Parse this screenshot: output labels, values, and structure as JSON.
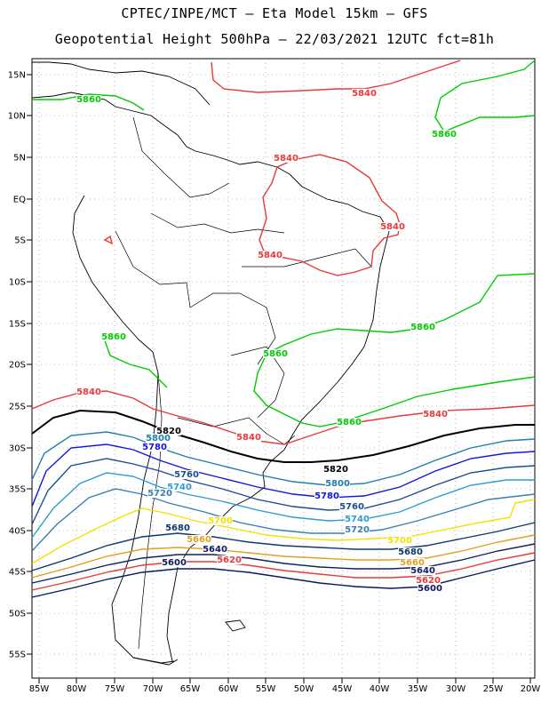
{
  "header": {
    "line1": "CPTEC/INPE/MCT –  Eta Model 15km – GFS",
    "line2": "Geopotential Height 500hPa – 22/03/2021 12UTC fct=81h"
  },
  "map": {
    "lat_labels": [
      "15N",
      "10N",
      "5N",
      "EQ",
      "5S",
      "10S",
      "15S",
      "20S",
      "25S",
      "30S",
      "35S",
      "40S",
      "45S",
      "50S",
      "55S"
    ],
    "lon_labels": [
      "85W",
      "80W",
      "75W",
      "70W",
      "65W",
      "60W",
      "55W",
      "50W",
      "45W",
      "40W",
      "35W",
      "30W",
      "25W",
      "20W"
    ]
  },
  "legend_colors": {
    "5860": "#00cc00",
    "5840": "#e83a3a",
    "5820": "#000000",
    "5800": "#1f7fa8",
    "5780": "#1414e0",
    "5760": "#1a4f8c",
    "5740": "#2e9ccf",
    "5720": "#3b7fb0",
    "5700": "#f2e200",
    "5680": "#0a3a6e",
    "5660": "#e0a020",
    "5640": "#102060",
    "5620": "#e83a3a",
    "5600": "#0a1a5a"
  },
  "contour_labels": [
    {
      "text": "5860",
      "color": "#00cc00"
    },
    {
      "text": "5860",
      "color": "#00cc00"
    },
    {
      "text": "5860",
      "color": "#00cc00"
    },
    {
      "text": "5860",
      "color": "#00cc00"
    },
    {
      "text": "5860",
      "color": "#00cc00"
    },
    {
      "text": "5860",
      "color": "#00cc00"
    },
    {
      "text": "5840",
      "color": "#e83a3a"
    },
    {
      "text": "5840",
      "color": "#e83a3a"
    },
    {
      "text": "5840",
      "color": "#e83a3a"
    },
    {
      "text": "5840",
      "color": "#e83a3a"
    },
    {
      "text": "5840",
      "color": "#e83a3a"
    },
    {
      "text": "5840",
      "color": "#e83a3a"
    },
    {
      "text": "5840",
      "color": "#e83a3a"
    },
    {
      "text": "5820",
      "color": "#000000"
    },
    {
      "text": "5820",
      "color": "#000000"
    },
    {
      "text": "5800",
      "color": "#1f7fa8"
    },
    {
      "text": "5800",
      "color": "#1f7fa8"
    },
    {
      "text": "5780",
      "color": "#1414e0"
    },
    {
      "text": "5780",
      "color": "#1414e0"
    },
    {
      "text": "5760",
      "color": "#1a4f8c"
    },
    {
      "text": "5760",
      "color": "#1a4f8c"
    },
    {
      "text": "5740",
      "color": "#2e9ccf"
    },
    {
      "text": "5740",
      "color": "#2e9ccf"
    },
    {
      "text": "5720",
      "color": "#3b7fb0"
    },
    {
      "text": "5720",
      "color": "#3b7fb0"
    },
    {
      "text": "5700",
      "color": "#f2e200"
    },
    {
      "text": "5700",
      "color": "#f2e200"
    },
    {
      "text": "5680",
      "color": "#0a3a6e"
    },
    {
      "text": "5680",
      "color": "#0a3a6e"
    },
    {
      "text": "5660",
      "color": "#e0a020"
    },
    {
      "text": "5660",
      "color": "#e0a020"
    },
    {
      "text": "5640",
      "color": "#102060"
    },
    {
      "text": "5640",
      "color": "#102060"
    },
    {
      "text": "5620",
      "color": "#e83a3a"
    },
    {
      "text": "5620",
      "color": "#e83a3a"
    },
    {
      "text": "5600",
      "color": "#0a1a5a"
    },
    {
      "text": "5600",
      "color": "#0a1a5a"
    }
  ]
}
